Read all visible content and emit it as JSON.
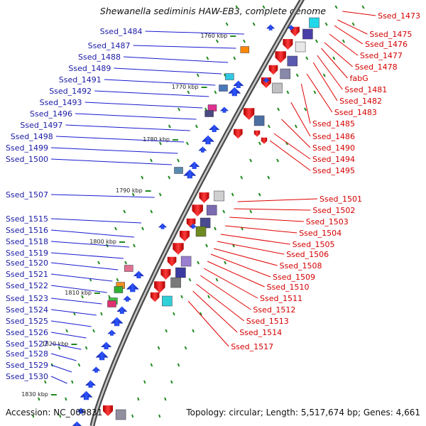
{
  "title": "Shewanella sediminis HAW-EB3, complete genome",
  "footer": {
    "accession": "Accession: NC_009831",
    "topology": "Topology: circular; Length: 5,517,674 bp; Genes: 4,661"
  },
  "colors": {
    "left_label": "#1a1aa6",
    "right_label": "#d40000",
    "left_line": "#1a1ad0",
    "right_line": "#e00000",
    "backbone": "#7a7a7a",
    "tick": "#1f8a1f",
    "forward_gene": "#1230d8",
    "reverse_gene": "#e01010"
  },
  "kbp_marks": [
    "1760 kbp",
    "1770 kbp",
    "1780 kbp",
    "1790 kbp",
    "1800 kbp",
    "1810 kbp",
    "1820 kbp",
    "1830 kbp"
  ],
  "left_labels": [
    "Ssed_1484",
    "Ssed_1487",
    "Ssed_1488",
    "Ssed_1489",
    "Ssed_1491",
    "Ssed_1492",
    "Ssed_1493",
    "Ssed_1496",
    "Ssed_1497",
    "Ssed_1498",
    "Ssed_1499",
    "Ssed_1500",
    "Ssed_1507",
    "Ssed_1515",
    "Ssed_1516",
    "Ssed_1518",
    "Ssed_1519",
    "Ssed_1520",
    "Ssed_1521",
    "Ssed_1522",
    "Ssed_1523",
    "Ssed_1524",
    "Ssed_1525",
    "Ssed_1526",
    "Ssed_1527",
    "Ssed_1528",
    "Ssed_1529",
    "Ssed_1530"
  ],
  "right_labels": [
    "Ssed_1473",
    "Ssed_1475",
    "Ssed_1476",
    "Ssed_1477",
    "Ssed_1478",
    "fabG",
    "Ssed_1481",
    "Ssed_1482",
    "Ssed_1483",
    "Ssed_1485",
    "Ssed_1486",
    "Ssed_1490",
    "Ssed_1494",
    "Ssed_1495",
    "Ssed_1501",
    "Ssed_1502",
    "Ssed_1503",
    "Ssed_1504",
    "Ssed_1505",
    "Ssed_1506",
    "Ssed_1508",
    "Ssed_1509",
    "Ssed_1510",
    "Ssed_1511",
    "Ssed_1512",
    "Ssed_1513",
    "Ssed_1514",
    "Ssed_1517"
  ]
}
